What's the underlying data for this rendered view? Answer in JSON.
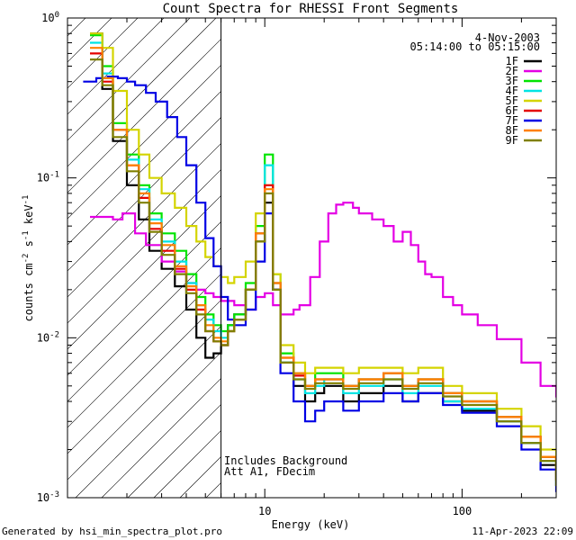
{
  "chart_data": {
    "type": "line",
    "title": "Count Spectra for RHESSI Front Segments",
    "xlabel": "Energy (keV)",
    "ylabel": "counts cm^-2 s^-1 keV^-1",
    "xscale": "log",
    "yscale": "log",
    "xlim": [
      1,
      300
    ],
    "ylim": [
      0.001,
      1
    ],
    "x_tick_labels": [
      {
        "value": 10,
        "label": "10"
      },
      {
        "value": 100,
        "label": "100"
      }
    ],
    "y_tick_labels": [
      {
        "value": 0.001,
        "base": "10",
        "exp": "-3"
      },
      {
        "value": 0.01,
        "base": "10",
        "exp": "-2"
      },
      {
        "value": 0.1,
        "base": "10",
        "exp": "-1"
      },
      {
        "value": 1,
        "base": "10",
        "exp": "0"
      }
    ],
    "date": "4-Nov-2003",
    "time_range": "05:14:00 to 05:15:00",
    "attenuator_boundary_kev": 6,
    "annotations": [
      "Includes Background",
      "Att A1, FDecim"
    ],
    "footer_left": "Generated by hsi_min_spectra_plot.pro",
    "footer_right": "11-Apr-2023 22:09",
    "series": [
      {
        "name": "1F",
        "color": "#000000",
        "x": [
          1.3,
          1.5,
          1.7,
          2,
          2.3,
          2.6,
          3,
          3.5,
          4,
          4.5,
          5,
          5.5,
          6,
          6.5,
          7,
          8,
          9,
          10,
          11,
          12,
          14,
          16,
          18,
          20,
          25,
          30,
          40,
          50,
          60,
          80,
          100,
          150,
          200,
          250,
          300
        ],
        "y": [
          0.8,
          0.36,
          0.17,
          0.09,
          0.055,
          0.035,
          0.027,
          0.021,
          0.015,
          0.01,
          0.0075,
          0.008,
          0.009,
          0.012,
          0.014,
          0.02,
          0.04,
          0.07,
          0.02,
          0.007,
          0.005,
          0.004,
          0.0045,
          0.005,
          0.004,
          0.0045,
          0.005,
          0.004,
          0.0045,
          0.004,
          0.0035,
          0.003,
          0.0022,
          0.0016,
          0.0012
        ]
      },
      {
        "name": "2F",
        "color": "#e400e4",
        "x": [
          1.3,
          1.5,
          1.7,
          1.9,
          2.2,
          2.5,
          3,
          3.5,
          4,
          4.5,
          5,
          5.5,
          6,
          7,
          8,
          9,
          10,
          11,
          12,
          13,
          14,
          15,
          17,
          19,
          21,
          23,
          25,
          28,
          30,
          35,
          40,
          45,
          50,
          55,
          60,
          65,
          70,
          80,
          90,
          100,
          120,
          150,
          200,
          250,
          300
        ],
        "y": [
          0.057,
          0.057,
          0.055,
          0.06,
          0.045,
          0.038,
          0.03,
          0.026,
          0.022,
          0.02,
          0.019,
          0.018,
          0.017,
          0.016,
          0.015,
          0.018,
          0.019,
          0.016,
          0.014,
          0.014,
          0.015,
          0.016,
          0.024,
          0.04,
          0.06,
          0.068,
          0.07,
          0.065,
          0.06,
          0.055,
          0.05,
          0.04,
          0.046,
          0.038,
          0.03,
          0.025,
          0.024,
          0.018,
          0.016,
          0.014,
          0.012,
          0.0098,
          0.007,
          0.005,
          0.0043
        ]
      },
      {
        "name": "3F",
        "color": "#00e400",
        "x": [
          1.3,
          1.5,
          1.7,
          2,
          2.3,
          2.6,
          3,
          3.5,
          4,
          4.5,
          5,
          5.5,
          6,
          6.5,
          7,
          8,
          9,
          10,
          11,
          12,
          14,
          16,
          18,
          20,
          25,
          30,
          40,
          50,
          60,
          80,
          100,
          150,
          200,
          250,
          300
        ],
        "y": [
          0.78,
          0.5,
          0.22,
          0.14,
          0.09,
          0.06,
          0.045,
          0.035,
          0.025,
          0.018,
          0.014,
          0.012,
          0.011,
          0.012,
          0.014,
          0.022,
          0.05,
          0.14,
          0.025,
          0.008,
          0.006,
          0.005,
          0.006,
          0.006,
          0.005,
          0.0055,
          0.006,
          0.005,
          0.0055,
          0.0045,
          0.004,
          0.0032,
          0.0024,
          0.0018,
          0.0013
        ]
      },
      {
        "name": "4F",
        "color": "#00e4e4",
        "x": [
          1.3,
          1.5,
          1.7,
          2,
          2.3,
          2.6,
          3,
          3.5,
          4,
          4.5,
          5,
          5.5,
          6,
          6.5,
          7,
          8,
          9,
          10,
          11,
          12,
          14,
          16,
          18,
          20,
          25,
          30,
          40,
          50,
          60,
          80,
          100,
          150,
          200,
          250,
          300
        ],
        "y": [
          0.7,
          0.45,
          0.2,
          0.13,
          0.085,
          0.055,
          0.04,
          0.03,
          0.022,
          0.016,
          0.013,
          0.011,
          0.01,
          0.011,
          0.013,
          0.02,
          0.045,
          0.12,
          0.022,
          0.007,
          0.0055,
          0.0045,
          0.005,
          0.0055,
          0.0045,
          0.005,
          0.0055,
          0.0045,
          0.005,
          0.004,
          0.0036,
          0.003,
          0.0022,
          0.0017,
          0.0012
        ]
      },
      {
        "name": "5F",
        "color": "#d4d400",
        "x": [
          1.3,
          1.5,
          1.7,
          2,
          2.3,
          2.6,
          3,
          3.5,
          4,
          4.5,
          5,
          5.5,
          6,
          6.5,
          7,
          8,
          9,
          10,
          11,
          12,
          14,
          16,
          18,
          20,
          25,
          30,
          40,
          50,
          60,
          80,
          100,
          150,
          200,
          250,
          300
        ],
        "y": [
          0.8,
          0.65,
          0.35,
          0.2,
          0.14,
          0.1,
          0.08,
          0.065,
          0.05,
          0.04,
          0.032,
          0.028,
          0.024,
          0.022,
          0.024,
          0.03,
          0.06,
          0.09,
          0.025,
          0.009,
          0.007,
          0.006,
          0.0065,
          0.0065,
          0.006,
          0.0065,
          0.0065,
          0.006,
          0.0065,
          0.005,
          0.0045,
          0.0036,
          0.0028,
          0.002,
          0.0014
        ]
      },
      {
        "name": "6F",
        "color": "#e40000",
        "x": [
          1.3,
          1.5,
          1.7,
          2,
          2.3,
          2.6,
          3,
          3.5,
          4,
          4.5,
          5,
          5.5,
          6,
          6.5,
          7,
          8,
          9,
          10,
          11,
          12,
          14,
          16,
          18,
          20,
          25,
          30,
          40,
          50,
          60,
          80,
          100,
          150,
          200,
          250,
          300
        ],
        "y": [
          0.6,
          0.4,
          0.2,
          0.12,
          0.075,
          0.048,
          0.035,
          0.027,
          0.02,
          0.015,
          0.011,
          0.0095,
          0.009,
          0.011,
          0.013,
          0.02,
          0.045,
          0.09,
          0.022,
          0.0075,
          0.0058,
          0.005,
          0.0055,
          0.0055,
          0.005,
          0.0055,
          0.006,
          0.005,
          0.0055,
          0.0045,
          0.004,
          0.0032,
          0.0024,
          0.0018,
          0.0013
        ]
      },
      {
        "name": "7F",
        "color": "#0000e4",
        "x": [
          1.2,
          1.4,
          1.6,
          1.8,
          2,
          2.2,
          2.5,
          2.8,
          3.2,
          3.6,
          4,
          4.5,
          5,
          5.5,
          6,
          6.5,
          7,
          8,
          9,
          10,
          11,
          12,
          14,
          16,
          18,
          20,
          25,
          30,
          40,
          50,
          60,
          80,
          100,
          150,
          200,
          250,
          300
        ],
        "y": [
          0.4,
          0.42,
          0.43,
          0.42,
          0.4,
          0.38,
          0.34,
          0.3,
          0.24,
          0.18,
          0.12,
          0.07,
          0.042,
          0.028,
          0.018,
          0.013,
          0.012,
          0.015,
          0.03,
          0.06,
          0.02,
          0.006,
          0.004,
          0.003,
          0.0035,
          0.004,
          0.0035,
          0.004,
          0.0045,
          0.004,
          0.0045,
          0.0038,
          0.0034,
          0.0028,
          0.002,
          0.0015,
          0.0011
        ]
      },
      {
        "name": "8F",
        "color": "#ff8000",
        "x": [
          1.3,
          1.5,
          1.7,
          2,
          2.3,
          2.6,
          3,
          3.5,
          4,
          4.5,
          5,
          5.5,
          6,
          6.5,
          7,
          8,
          9,
          10,
          11,
          12,
          14,
          16,
          18,
          20,
          25,
          30,
          40,
          50,
          60,
          80,
          100,
          150,
          200,
          250,
          300
        ],
        "y": [
          0.65,
          0.42,
          0.2,
          0.12,
          0.08,
          0.052,
          0.038,
          0.028,
          0.021,
          0.016,
          0.012,
          0.01,
          0.0095,
          0.011,
          0.013,
          0.02,
          0.045,
          0.085,
          0.022,
          0.0075,
          0.006,
          0.005,
          0.0055,
          0.0055,
          0.005,
          0.0055,
          0.006,
          0.005,
          0.0055,
          0.0045,
          0.004,
          0.0032,
          0.0024,
          0.0018,
          0.0013
        ]
      },
      {
        "name": "9F",
        "color": "#808000",
        "x": [
          1.3,
          1.5,
          1.7,
          2,
          2.3,
          2.6,
          3,
          3.5,
          4,
          4.5,
          5,
          5.5,
          6,
          6.5,
          7,
          8,
          9,
          10,
          11,
          12,
          14,
          16,
          18,
          20,
          25,
          30,
          40,
          50,
          60,
          80,
          100,
          150,
          200,
          250,
          300
        ],
        "y": [
          0.55,
          0.38,
          0.18,
          0.11,
          0.07,
          0.046,
          0.033,
          0.025,
          0.019,
          0.014,
          0.011,
          0.0095,
          0.009,
          0.011,
          0.013,
          0.02,
          0.04,
          0.08,
          0.02,
          0.007,
          0.0055,
          0.0048,
          0.0052,
          0.0052,
          0.0048,
          0.0052,
          0.0055,
          0.0048,
          0.0052,
          0.0043,
          0.0038,
          0.003,
          0.0022,
          0.0017,
          0.0012
        ]
      }
    ]
  }
}
